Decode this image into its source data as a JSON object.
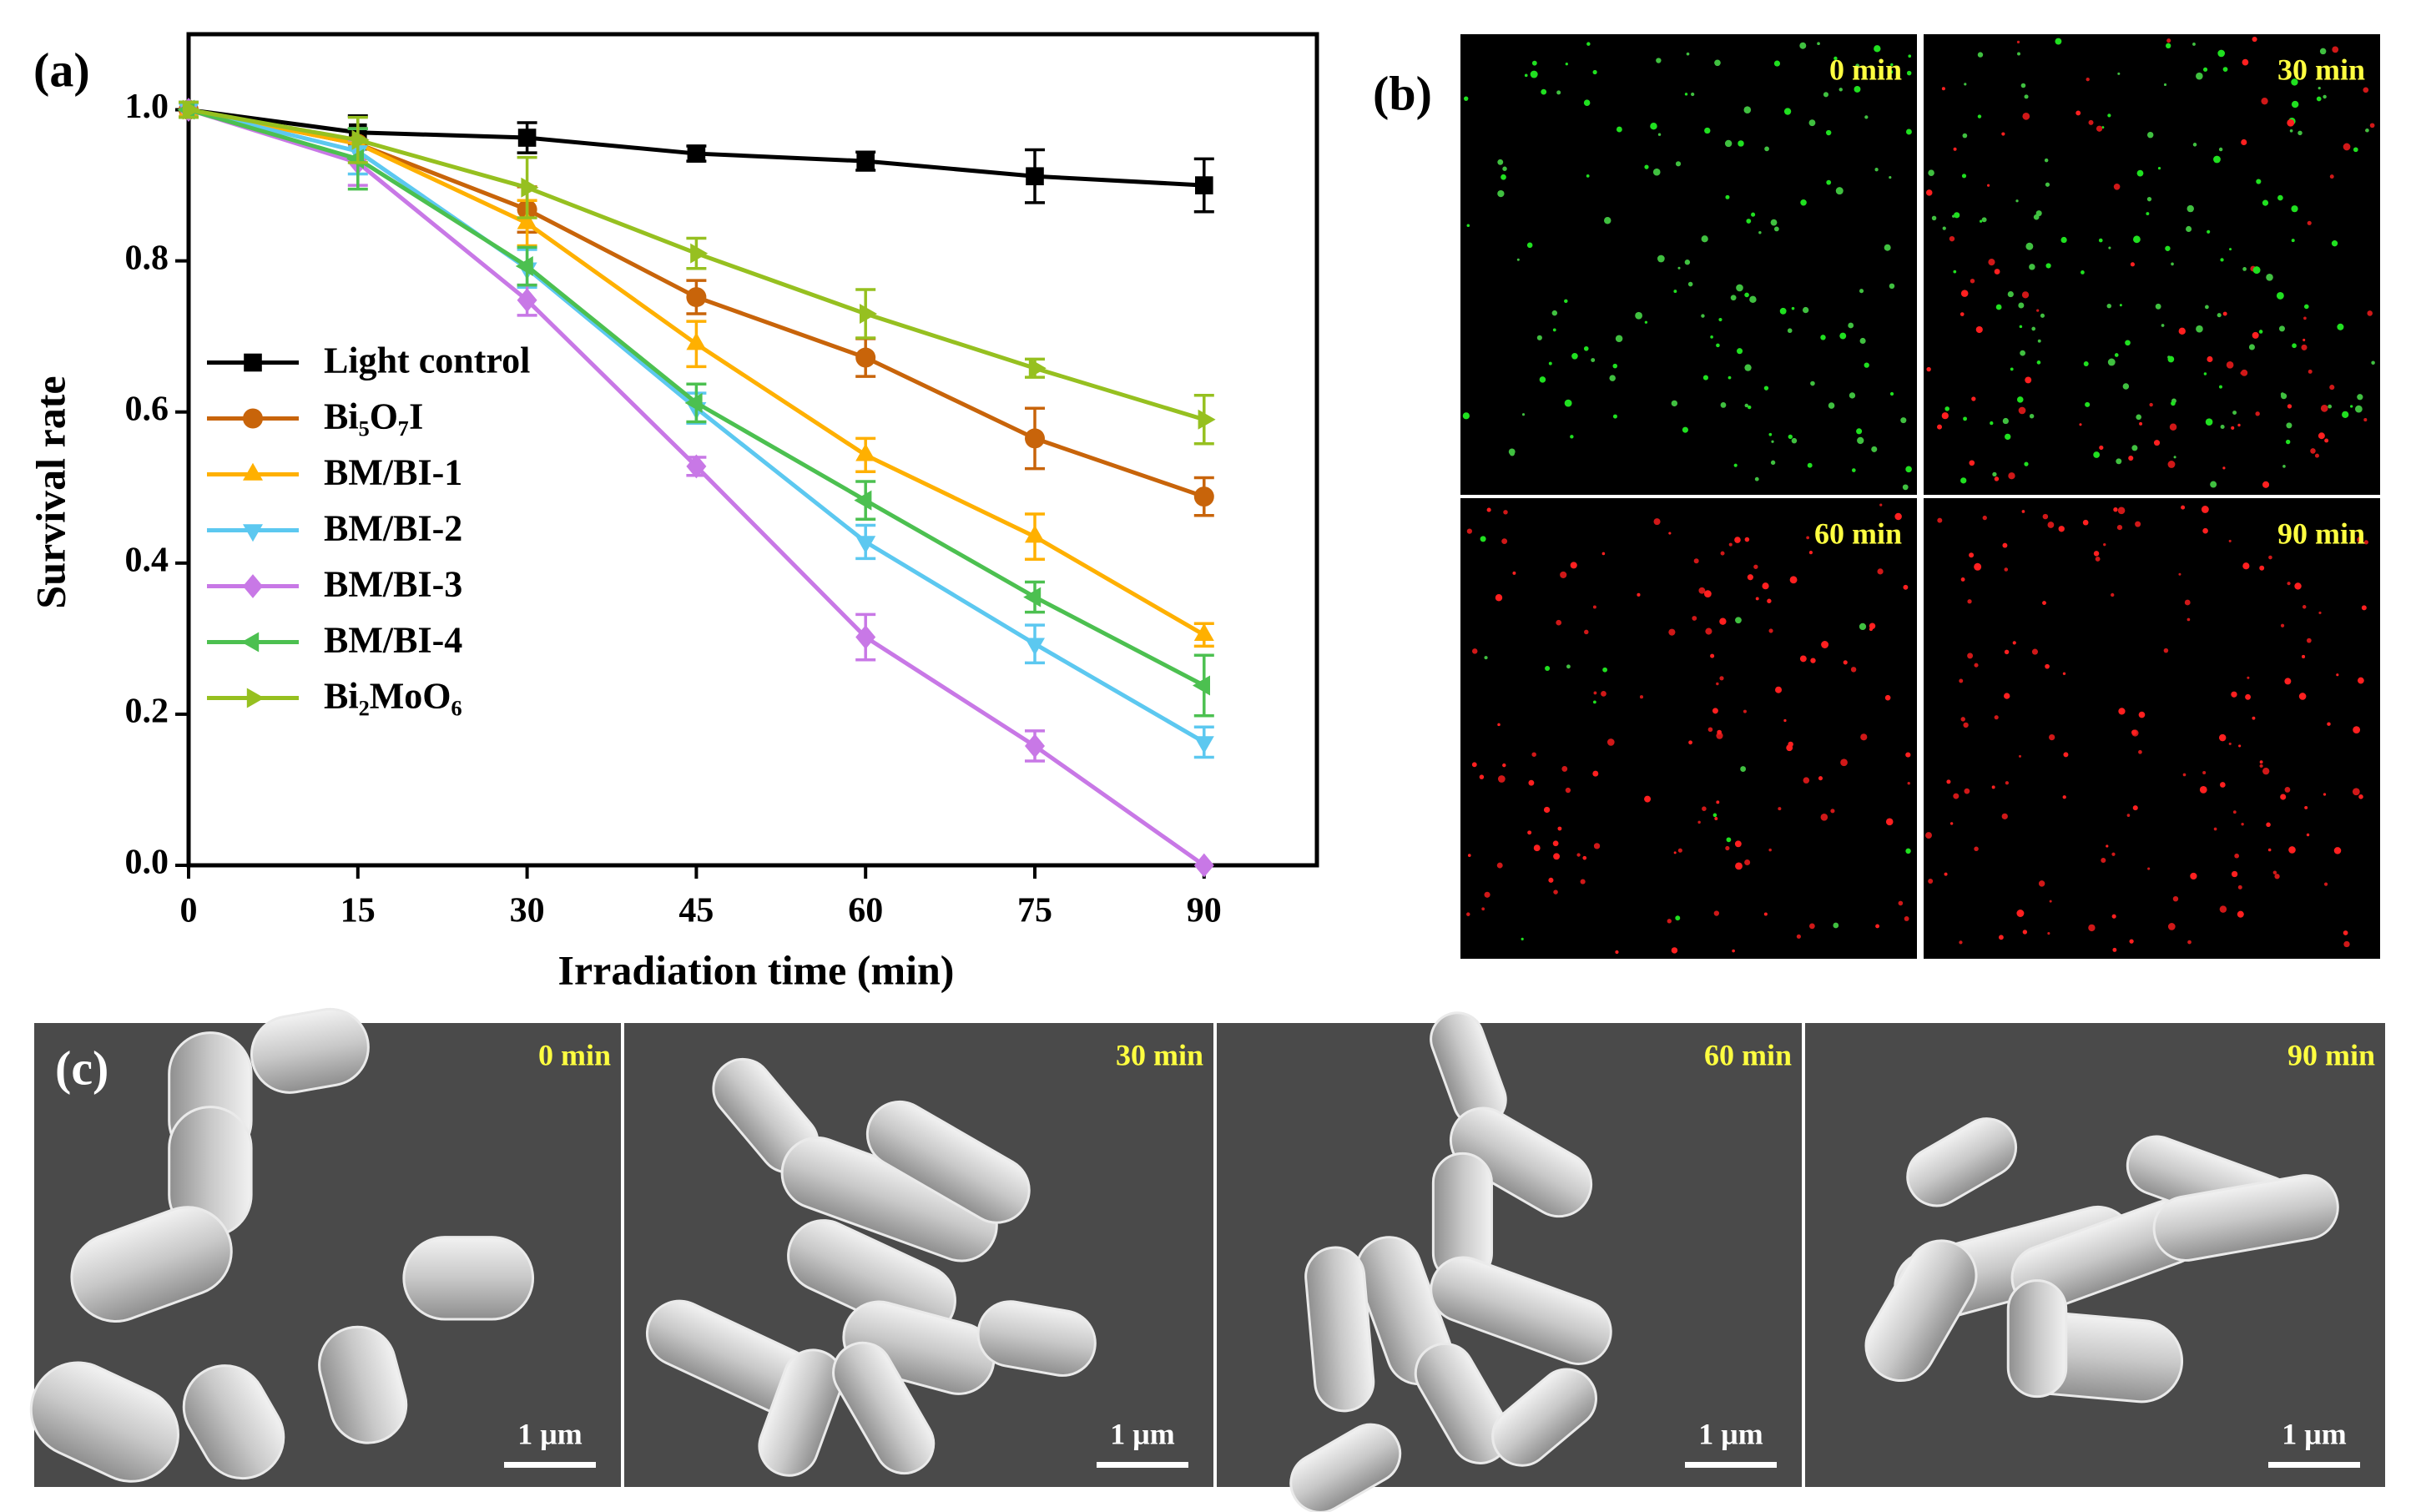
{
  "chart_data": {
    "type": "line",
    "panel_label": "(a)",
    "x_label": "Irradiation  time (min)",
    "y_label": "Survival rate",
    "x": [
      0,
      15,
      30,
      45,
      60,
      75,
      90
    ],
    "xlim": [
      0,
      100
    ],
    "xticks": [
      0,
      15,
      30,
      45,
      60,
      75,
      90
    ],
    "ylim": [
      0,
      1.1
    ],
    "yticks": [
      {
        "value": 0,
        "label": "0.0"
      },
      0.2,
      0.4,
      0.6,
      0.8,
      {
        "value": 1,
        "label": "1.0"
      }
    ],
    "legend": "center left",
    "series": [
      {
        "name": "Light control",
        "color": "#000000",
        "marker": "square",
        "values": [
          1.0,
          0.97,
          0.963,
          0.942,
          0.932,
          0.912,
          0.9
        ],
        "errors": [
          0.01,
          0.022,
          0.02,
          0.01,
          0.012,
          0.035,
          0.035
        ]
      },
      {
        "name": "Bi₅O₇I",
        "color": "#c8640a",
        "marker": "circle",
        "values": [
          1.0,
          0.955,
          0.868,
          0.752,
          0.672,
          0.565,
          0.488
        ],
        "errors": [
          0.01,
          0.02,
          0.03,
          0.022,
          0.025,
          0.04,
          0.025
        ]
      },
      {
        "name": "BM/BI-1",
        "color": "#ffb000",
        "marker": "triangle-up",
        "values": [
          1.0,
          0.955,
          0.85,
          0.69,
          0.543,
          0.435,
          0.305
        ],
        "errors": [
          0.01,
          0.02,
          0.03,
          0.03,
          0.022,
          0.03,
          0.015
        ]
      },
      {
        "name": "BM/BI-2",
        "color": "#5cc8f0",
        "marker": "triangle-down",
        "values": [
          1.0,
          0.945,
          0.79,
          0.605,
          0.428,
          0.293,
          0.163
        ],
        "errors": [
          0.01,
          0.03,
          0.025,
          0.02,
          0.022,
          0.025,
          0.02
        ]
      },
      {
        "name": "BM/BI-3",
        "color": "#c878e6",
        "marker": "diamond",
        "values": [
          1.0,
          0.93,
          0.748,
          0.528,
          0.302,
          0.158,
          0.0
        ],
        "errors": [
          0.01,
          0.03,
          0.02,
          0.012,
          0.03,
          0.02,
          0.0
        ]
      },
      {
        "name": "BM/BI-4",
        "color": "#4cc050",
        "marker": "triangle-left",
        "values": [
          1.0,
          0.935,
          0.793,
          0.612,
          0.483,
          0.355,
          0.238
        ],
        "errors": [
          0.01,
          0.04,
          0.025,
          0.025,
          0.025,
          0.02,
          0.04
        ]
      },
      {
        "name": "Bi₂MoO₆",
        "color": "#96c020",
        "marker": "triangle-right",
        "values": [
          1.0,
          0.96,
          0.897,
          0.81,
          0.73,
          0.658,
          0.59
        ],
        "errors": [
          0.01,
          0.03,
          0.04,
          0.02,
          0.032,
          0.012,
          0.032
        ]
      }
    ]
  },
  "panel_b": {
    "label": "(b)",
    "images": [
      "0 min",
      "30 min",
      "60 min",
      "90 min"
    ]
  },
  "panel_c": {
    "label": "(c)",
    "images": [
      "0 min",
      "30 min",
      "60 min",
      "90 min"
    ],
    "scale_bar": "1 μm"
  }
}
